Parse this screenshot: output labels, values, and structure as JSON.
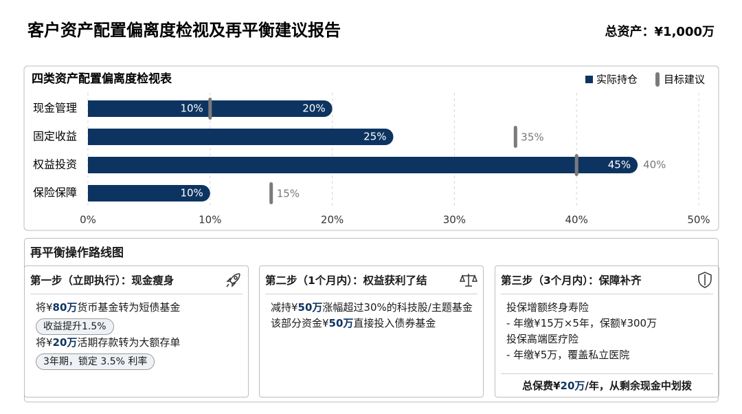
{
  "header": {
    "title": "客户资产配置偏离度检视及再平衡建议报告",
    "total": "总资产：¥1,000万"
  },
  "chart_data": {
    "type": "bar",
    "orientation": "horizontal",
    "title": "四类资产配置偏离度检视表",
    "categories": [
      "现金管理",
      "固定收益",
      "权益投资",
      "保险保障"
    ],
    "series": [
      {
        "name": "实际持仓",
        "color": "#0d3461",
        "values": [
          20,
          25,
          45,
          10
        ],
        "value_labels": [
          "20%",
          "25%",
          "45%",
          "10%"
        ]
      },
      {
        "name": "目标建议",
        "color": "#7a7a7a",
        "values": [
          10,
          35,
          40,
          15
        ],
        "value_labels": [
          "10%",
          "35%",
          "40%",
          "15%"
        ]
      }
    ],
    "xlim": [
      0,
      50
    ],
    "xticks": [
      {
        "value": 0,
        "label": "0%"
      },
      {
        "value": 10,
        "label": "10%"
      },
      {
        "value": 20,
        "label": "20%"
      },
      {
        "value": 30,
        "label": "30%"
      },
      {
        "value": 40,
        "label": "40%"
      },
      {
        "value": 50,
        "label": "50%"
      }
    ],
    "grid": true,
    "legend": "top-right"
  },
  "roadmap": {
    "title": "再平衡操作路线图",
    "steps": [
      {
        "title": "第一步（立即执行）：现金瘦身",
        "items": [
          {
            "parts": [
              "将¥",
              "80万",
              "货币基金转为短债基金"
            ],
            "tag": "收益提升1.5%"
          },
          {
            "parts": [
              "将¥",
              "20万",
              "活期存款转为大额存单"
            ],
            "tag": "3年期，锁定 3.5% 利率"
          }
        ]
      },
      {
        "title": "第二步（1个月内）：权益获利了结",
        "items": [
          {
            "parts": [
              "减持¥",
              "50万",
              "涨幅超过30%的科技股/主题基金"
            ]
          },
          {
            "parts": [
              "该部分资金¥",
              "50万",
              "直接投入债券基金"
            ]
          }
        ]
      },
      {
        "title": "第三步（3个月内）：保障补齐",
        "items": [
          {
            "parts": [
              "投保增额终身寿险"
            ],
            "sub": "- 年缴¥15万×5年，保额¥300万"
          },
          {
            "parts": [
              "投保高端医疗险"
            ],
            "sub": "- 年缴¥5万，覆盖私立医院"
          }
        ],
        "footer": [
          "总保费¥",
          "20万",
          "/年，从剩余现金中划拨"
        ]
      }
    ]
  }
}
